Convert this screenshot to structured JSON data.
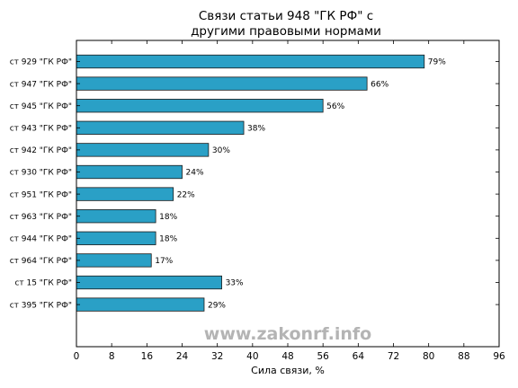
{
  "chart_data": {
    "type": "bar",
    "orientation": "horizontal",
    "title": "Связи статьи 948 \"ГК РФ\" с\nдругими правовыми нормами",
    "xlabel": "Сила связи, %",
    "ylabel": "",
    "xlim": [
      0,
      96
    ],
    "x_ticks": [
      0,
      8,
      16,
      24,
      32,
      40,
      48,
      56,
      64,
      72,
      80,
      88,
      96
    ],
    "categories": [
      "ст 929 \"ГК РФ\"",
      "ст 947 \"ГК РФ\"",
      "ст 945 \"ГК РФ\"",
      "ст 943 \"ГК РФ\"",
      "ст 942 \"ГК РФ\"",
      "ст 930 \"ГК РФ\"",
      "ст 951 \"ГК РФ\"",
      "ст 963 \"ГК РФ\"",
      "ст 944 \"ГК РФ\"",
      "ст 964 \"ГК РФ\"",
      "ст 15 \"ГК РФ\"",
      "ст 395 \"ГК РФ\""
    ],
    "values": [
      79,
      66,
      56,
      38,
      30,
      24,
      22,
      18,
      18,
      17,
      33,
      29
    ],
    "value_labels": [
      "79%",
      "66%",
      "56%",
      "38%",
      "30%",
      "24%",
      "22%",
      "18%",
      "18%",
      "17%",
      "33%",
      "29%"
    ],
    "bar_color": "#2aa0c6",
    "grid": false
  },
  "watermark": "www.zakonrf.info"
}
